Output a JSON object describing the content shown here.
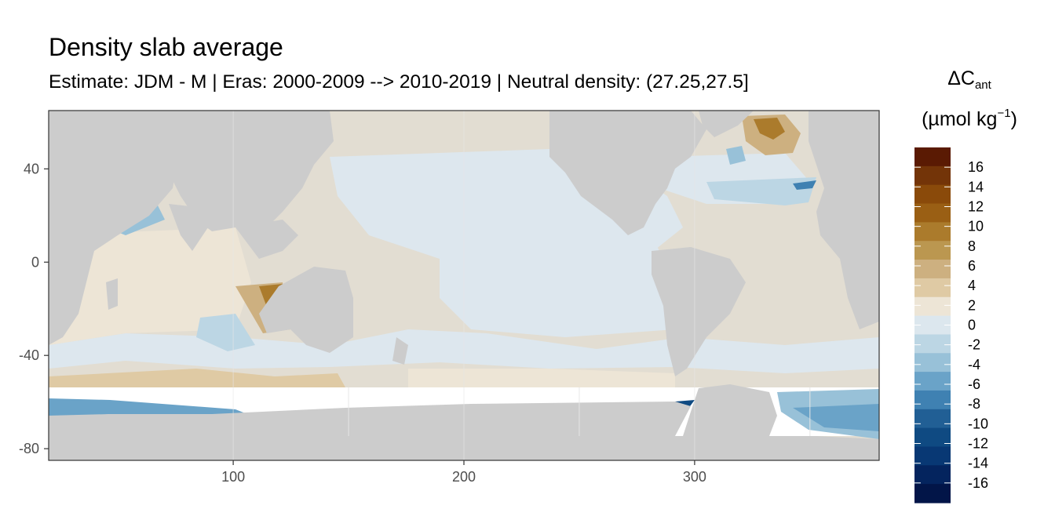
{
  "chart_data": {
    "type": "heatmap",
    "title": "Density slab average",
    "subtitle": "Estimate: JDM - M | Eras: 2000-2009 --> 2010-2019 | Neutral density: (27.25,27.5]",
    "x_ticks": [
      100,
      200,
      300
    ],
    "y_ticks": [
      40,
      0,
      -40,
      -80
    ],
    "xlim": [
      20,
      380
    ],
    "ylim": [
      -85,
      65
    ],
    "grid": true,
    "legend": {
      "title_main": "ΔC",
      "title_sub": "ant",
      "unit_main": "(µmol kg",
      "unit_sup": "−1",
      "unit_end": ")",
      "placement": "right",
      "breaks": [
        16,
        14,
        12,
        10,
        8,
        6,
        4,
        2,
        0,
        -2,
        -4,
        -6,
        -8,
        -10,
        -12,
        -14,
        -16
      ],
      "bins": [
        18,
        16,
        14,
        12,
        10,
        8,
        6,
        4,
        2,
        0,
        -2,
        -4,
        -6,
        -8,
        -10,
        -12,
        -14,
        -16,
        -18
      ],
      "colors": [
        "#5a1a03",
        "#733408",
        "#8a4a0a",
        "#9a5f14",
        "#ab7b2c",
        "#bb9750",
        "#cdb080",
        "#dfcaa4",
        "#ede5d6",
        "#dce7ee",
        "#bcd6e4",
        "#98c1d8",
        "#6aa3c8",
        "#3f81b2",
        "#215f95",
        "#0f4a82",
        "#083874",
        "#04245e",
        "#021548"
      ]
    },
    "colors": {
      "land": "#cccccc",
      "no_data": "#ffffff",
      "panel_border": "#333333",
      "grid": "#e6e6e6"
    },
    "regions": [
      {
        "name": "pacific_tropics",
        "lon": [
          120,
          260
        ],
        "lat": [
          -30,
          20
        ],
        "value": 1
      },
      {
        "name": "pacific_north",
        "lon": [
          150,
          240
        ],
        "lat": [
          20,
          55
        ],
        "value": -1
      },
      {
        "name": "north_atlantic_hotspot",
        "lon": [
          320,
          345
        ],
        "lat": [
          50,
          65
        ],
        "value": 9
      },
      {
        "name": "indian_east_hotspot",
        "lon": [
          100,
          125
        ],
        "lat": [
          -30,
          -5
        ],
        "value": 7
      },
      {
        "name": "southern_ocean_band",
        "lon": [
          20,
          380
        ],
        "lat": [
          -55,
          -40
        ],
        "value": -2
      },
      {
        "name": "amundsen_bellingshausen",
        "lon": [
          255,
          300
        ],
        "lat": [
          -75,
          -65
        ],
        "value": -15
      },
      {
        "name": "weddell_edge",
        "lon": [
          320,
          380
        ],
        "lat": [
          -72,
          -60
        ],
        "value": -6
      },
      {
        "name": "indian_south_band",
        "lon": [
          20,
          160
        ],
        "lat": [
          -65,
          -58
        ],
        "value": -7
      }
    ]
  }
}
